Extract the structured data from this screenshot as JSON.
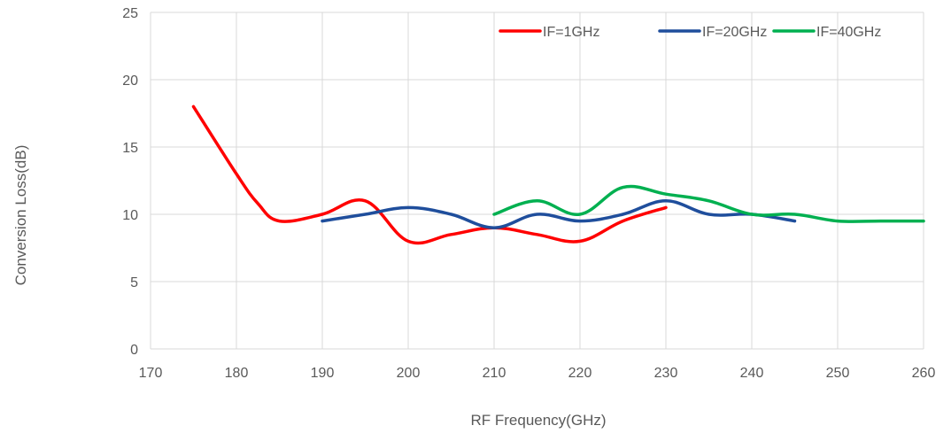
{
  "chart_data": {
    "type": "line",
    "xlabel": "RF Frequency(GHz)",
    "ylabel": "Conversion Loss(dB)",
    "xlim": [
      170,
      260
    ],
    "ylim": [
      0,
      25
    ],
    "xticks": [
      170,
      180,
      190,
      200,
      210,
      220,
      230,
      240,
      250,
      260
    ],
    "yticks": [
      0,
      5,
      10,
      15,
      20,
      25
    ],
    "grid": "vertical-and-horizontal",
    "legend_position": "top-right",
    "series": [
      {
        "name": "IF=1GHz",
        "color": "#ff0000",
        "x": [
          175,
          180,
          182.5,
          185,
          190,
          195,
          200,
          205,
          210,
          215,
          220,
          225,
          230
        ],
        "y": [
          18,
          13,
          10.8,
          9.5,
          10,
          11,
          8,
          8.5,
          9,
          8.5,
          8,
          9.5,
          10.5
        ]
      },
      {
        "name": "IF=20GHz",
        "color": "#1f4e9c",
        "x": [
          190,
          195,
          200,
          205,
          210,
          215,
          220,
          225,
          230,
          235,
          240,
          245
        ],
        "y": [
          9.5,
          10,
          10.5,
          10,
          9,
          10,
          9.5,
          10,
          11,
          10,
          10,
          9.5
        ]
      },
      {
        "name": "IF=40GHz",
        "color": "#00b050",
        "x": [
          210,
          215,
          220,
          225,
          230,
          235,
          240,
          245,
          250,
          255,
          260
        ],
        "y": [
          10,
          11,
          10,
          12,
          11.5,
          11,
          10,
          10,
          9.5,
          9.5,
          9.5
        ]
      }
    ]
  }
}
